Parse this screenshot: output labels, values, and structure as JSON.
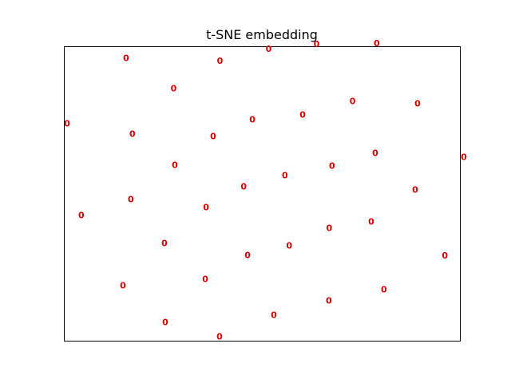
{
  "chart_data": {
    "type": "scatter",
    "title": "t-SNE embedding",
    "xlabel": "",
    "ylabel": "",
    "grid": false,
    "axis_ticks": false,
    "xlim": [
      0,
      1
    ],
    "ylim": [
      0,
      1
    ],
    "marker_color": "#dd0000",
    "points": [
      {
        "x": 0.157,
        "y": 0.96,
        "label": "0"
      },
      {
        "x": 0.394,
        "y": 0.95,
        "label": "0"
      },
      {
        "x": 0.517,
        "y": 0.99,
        "label": "0"
      },
      {
        "x": 0.638,
        "y": 1.007,
        "label": "0"
      },
      {
        "x": 0.79,
        "y": 1.01,
        "label": "0"
      },
      {
        "x": 0.277,
        "y": 0.856,
        "label": "0"
      },
      {
        "x": 0.729,
        "y": 0.813,
        "label": "0"
      },
      {
        "x": 0.893,
        "y": 0.805,
        "label": "0"
      },
      {
        "x": 0.603,
        "y": 0.767,
        "label": "0"
      },
      {
        "x": 0.476,
        "y": 0.751,
        "label": "0"
      },
      {
        "x": 0.008,
        "y": 0.737,
        "label": "0"
      },
      {
        "x": 0.173,
        "y": 0.702,
        "label": "0"
      },
      {
        "x": 0.377,
        "y": 0.694,
        "label": "0"
      },
      {
        "x": 0.786,
        "y": 0.637,
        "label": "0"
      },
      {
        "x": 1.01,
        "y": 0.623,
        "label": "0"
      },
      {
        "x": 0.28,
        "y": 0.596,
        "label": "0"
      },
      {
        "x": 0.677,
        "y": 0.593,
        "label": "0"
      },
      {
        "x": 0.558,
        "y": 0.561,
        "label": "0"
      },
      {
        "x": 0.454,
        "y": 0.523,
        "label": "0"
      },
      {
        "x": 0.887,
        "y": 0.512,
        "label": "0"
      },
      {
        "x": 0.169,
        "y": 0.48,
        "label": "0"
      },
      {
        "x": 0.359,
        "y": 0.453,
        "label": "0"
      },
      {
        "x": 0.044,
        "y": 0.426,
        "label": "0"
      },
      {
        "x": 0.776,
        "y": 0.404,
        "label": "0"
      },
      {
        "x": 0.67,
        "y": 0.382,
        "label": "0"
      },
      {
        "x": 0.254,
        "y": 0.331,
        "label": "0"
      },
      {
        "x": 0.569,
        "y": 0.323,
        "label": "0"
      },
      {
        "x": 0.464,
        "y": 0.29,
        "label": "0"
      },
      {
        "x": 0.962,
        "y": 0.288,
        "label": "0"
      },
      {
        "x": 0.357,
        "y": 0.209,
        "label": "0"
      },
      {
        "x": 0.149,
        "y": 0.187,
        "label": "0"
      },
      {
        "x": 0.808,
        "y": 0.174,
        "label": "0"
      },
      {
        "x": 0.669,
        "y": 0.136,
        "label": "0"
      },
      {
        "x": 0.53,
        "y": 0.087,
        "label": "0"
      },
      {
        "x": 0.256,
        "y": 0.063,
        "label": "0"
      },
      {
        "x": 0.393,
        "y": 0.014,
        "label": "0"
      }
    ]
  }
}
